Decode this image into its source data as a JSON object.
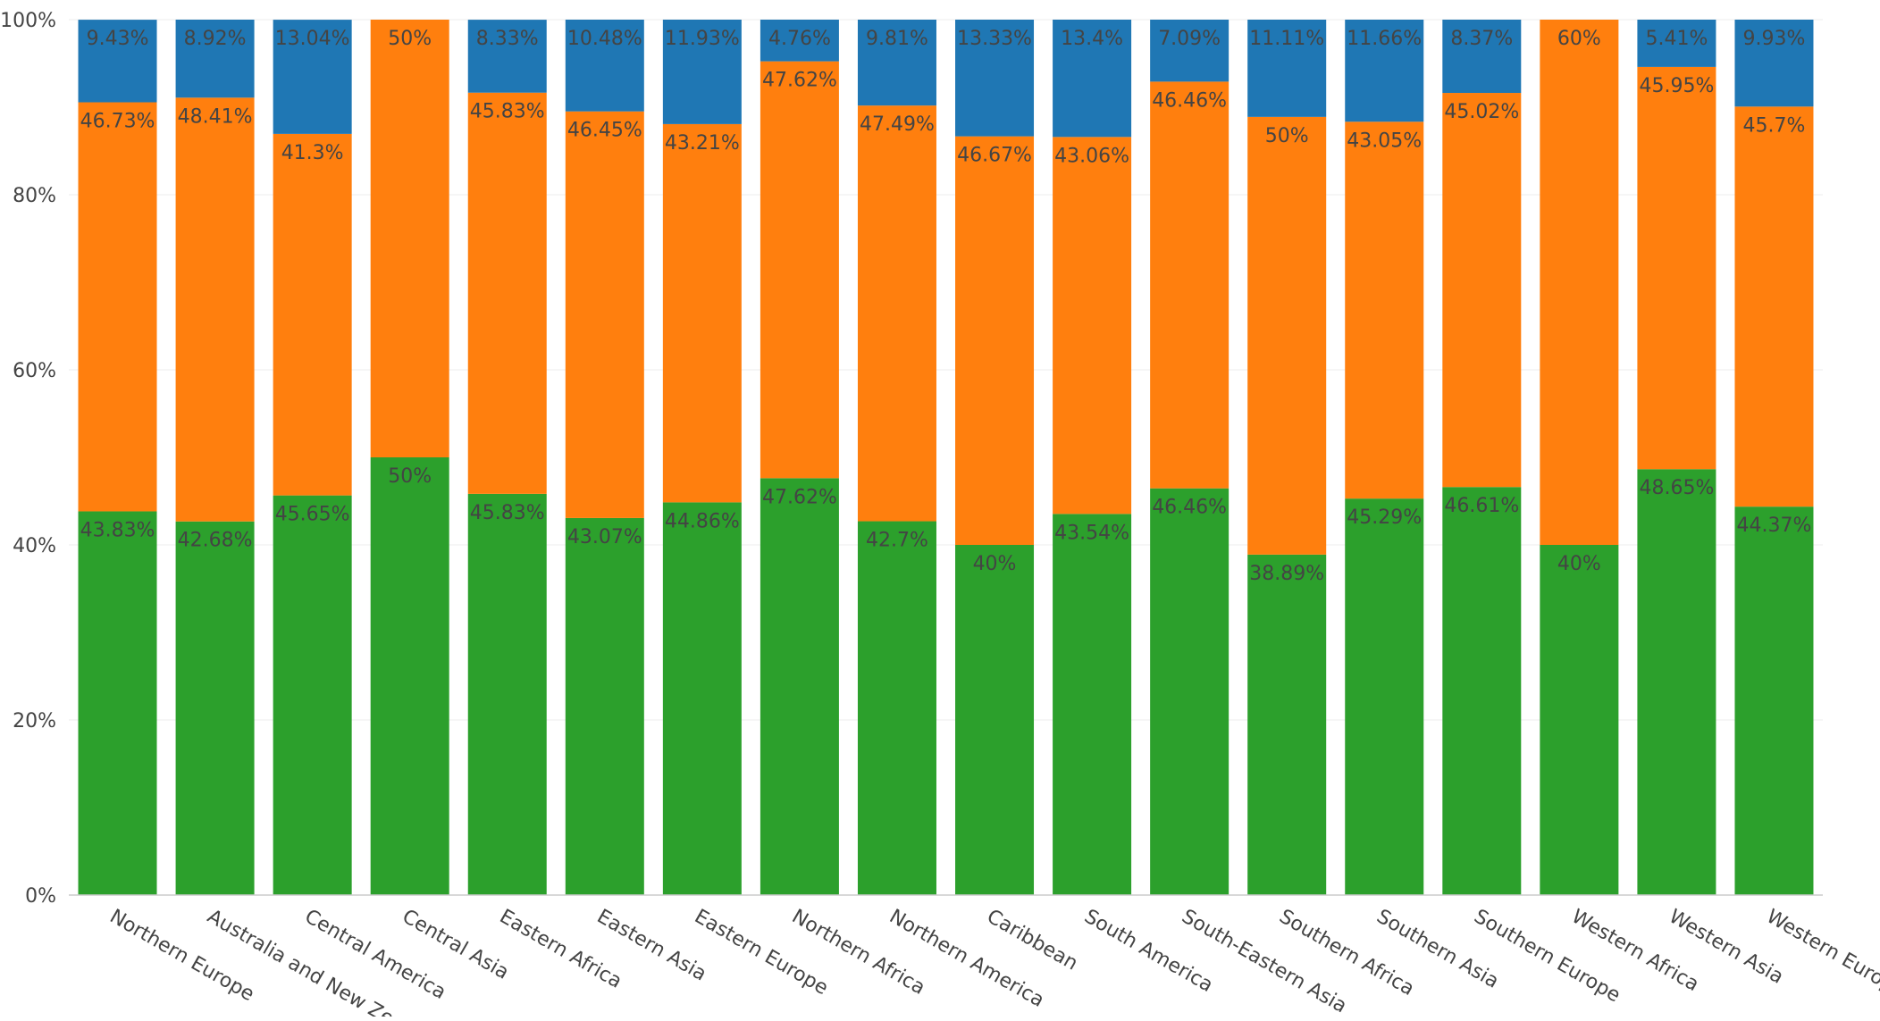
{
  "chart_data": {
    "type": "bar",
    "stacked": true,
    "normalized": true,
    "categories": [
      "Northern Europe",
      "Australia and New Zealand",
      "Central America",
      "Central Asia",
      "Eastern Africa",
      "Eastern Asia",
      "Eastern Europe",
      "Northern Africa",
      "Northern America",
      "Caribbean",
      "South America",
      "South-Eastern Asia",
      "Southern Africa",
      "Southern Asia",
      "Southern Europe",
      "Western Africa",
      "Western Asia",
      "Western Europe"
    ],
    "series": [
      {
        "color": "#2ca02c",
        "values": [
          43.83,
          42.68,
          45.65,
          50,
          45.83,
          43.07,
          44.86,
          47.62,
          42.7,
          40,
          43.54,
          46.46,
          38.89,
          45.29,
          46.61,
          40,
          48.65,
          44.37
        ],
        "labels": [
          "43.83%",
          "42.68%",
          "45.65%",
          "50%",
          "45.83%",
          "43.07%",
          "44.86%",
          "47.62%",
          "42.7%",
          "40%",
          "43.54%",
          "46.46%",
          "38.89%",
          "45.29%",
          "46.61%",
          "40%",
          "48.65%",
          "44.37%"
        ]
      },
      {
        "color": "#ff7f0e",
        "values": [
          46.73,
          48.41,
          41.3,
          50,
          45.83,
          46.45,
          43.21,
          47.62,
          47.49,
          46.67,
          43.06,
          46.46,
          50,
          43.05,
          45.02,
          60,
          45.95,
          45.7
        ],
        "labels": [
          "46.73%",
          "48.41%",
          "41.3%",
          "50%",
          "45.83%",
          "46.45%",
          "43.21%",
          "47.62%",
          "47.49%",
          "46.67%",
          "43.06%",
          "46.46%",
          "50%",
          "43.05%",
          "45.02%",
          "60%",
          "45.95%",
          "45.7%"
        ]
      },
      {
        "color": "#1f77b4",
        "values": [
          9.43,
          8.92,
          13.04,
          0,
          8.33,
          10.48,
          11.93,
          4.76,
          9.81,
          13.33,
          13.4,
          7.09,
          11.11,
          11.66,
          8.37,
          0,
          5.41,
          9.93
        ],
        "labels": [
          "9.43%",
          "8.92%",
          "13.04%",
          "",
          "8.33%",
          "10.48%",
          "11.93%",
          "4.76%",
          "9.81%",
          "13.33%",
          "13.4%",
          "7.09%",
          "11.11%",
          "11.66%",
          "8.37%",
          "",
          "5.41%",
          "9.93%"
        ]
      }
    ],
    "ylim": [
      0,
      100
    ],
    "yticks": [
      "0%",
      "20%",
      "40%",
      "60%",
      "80%",
      "100%"
    ],
    "ytick_values": [
      0,
      20,
      40,
      60,
      80,
      100
    ],
    "grid": true,
    "legend": "none",
    "title": "",
    "xlabel": "",
    "ylabel": ""
  }
}
